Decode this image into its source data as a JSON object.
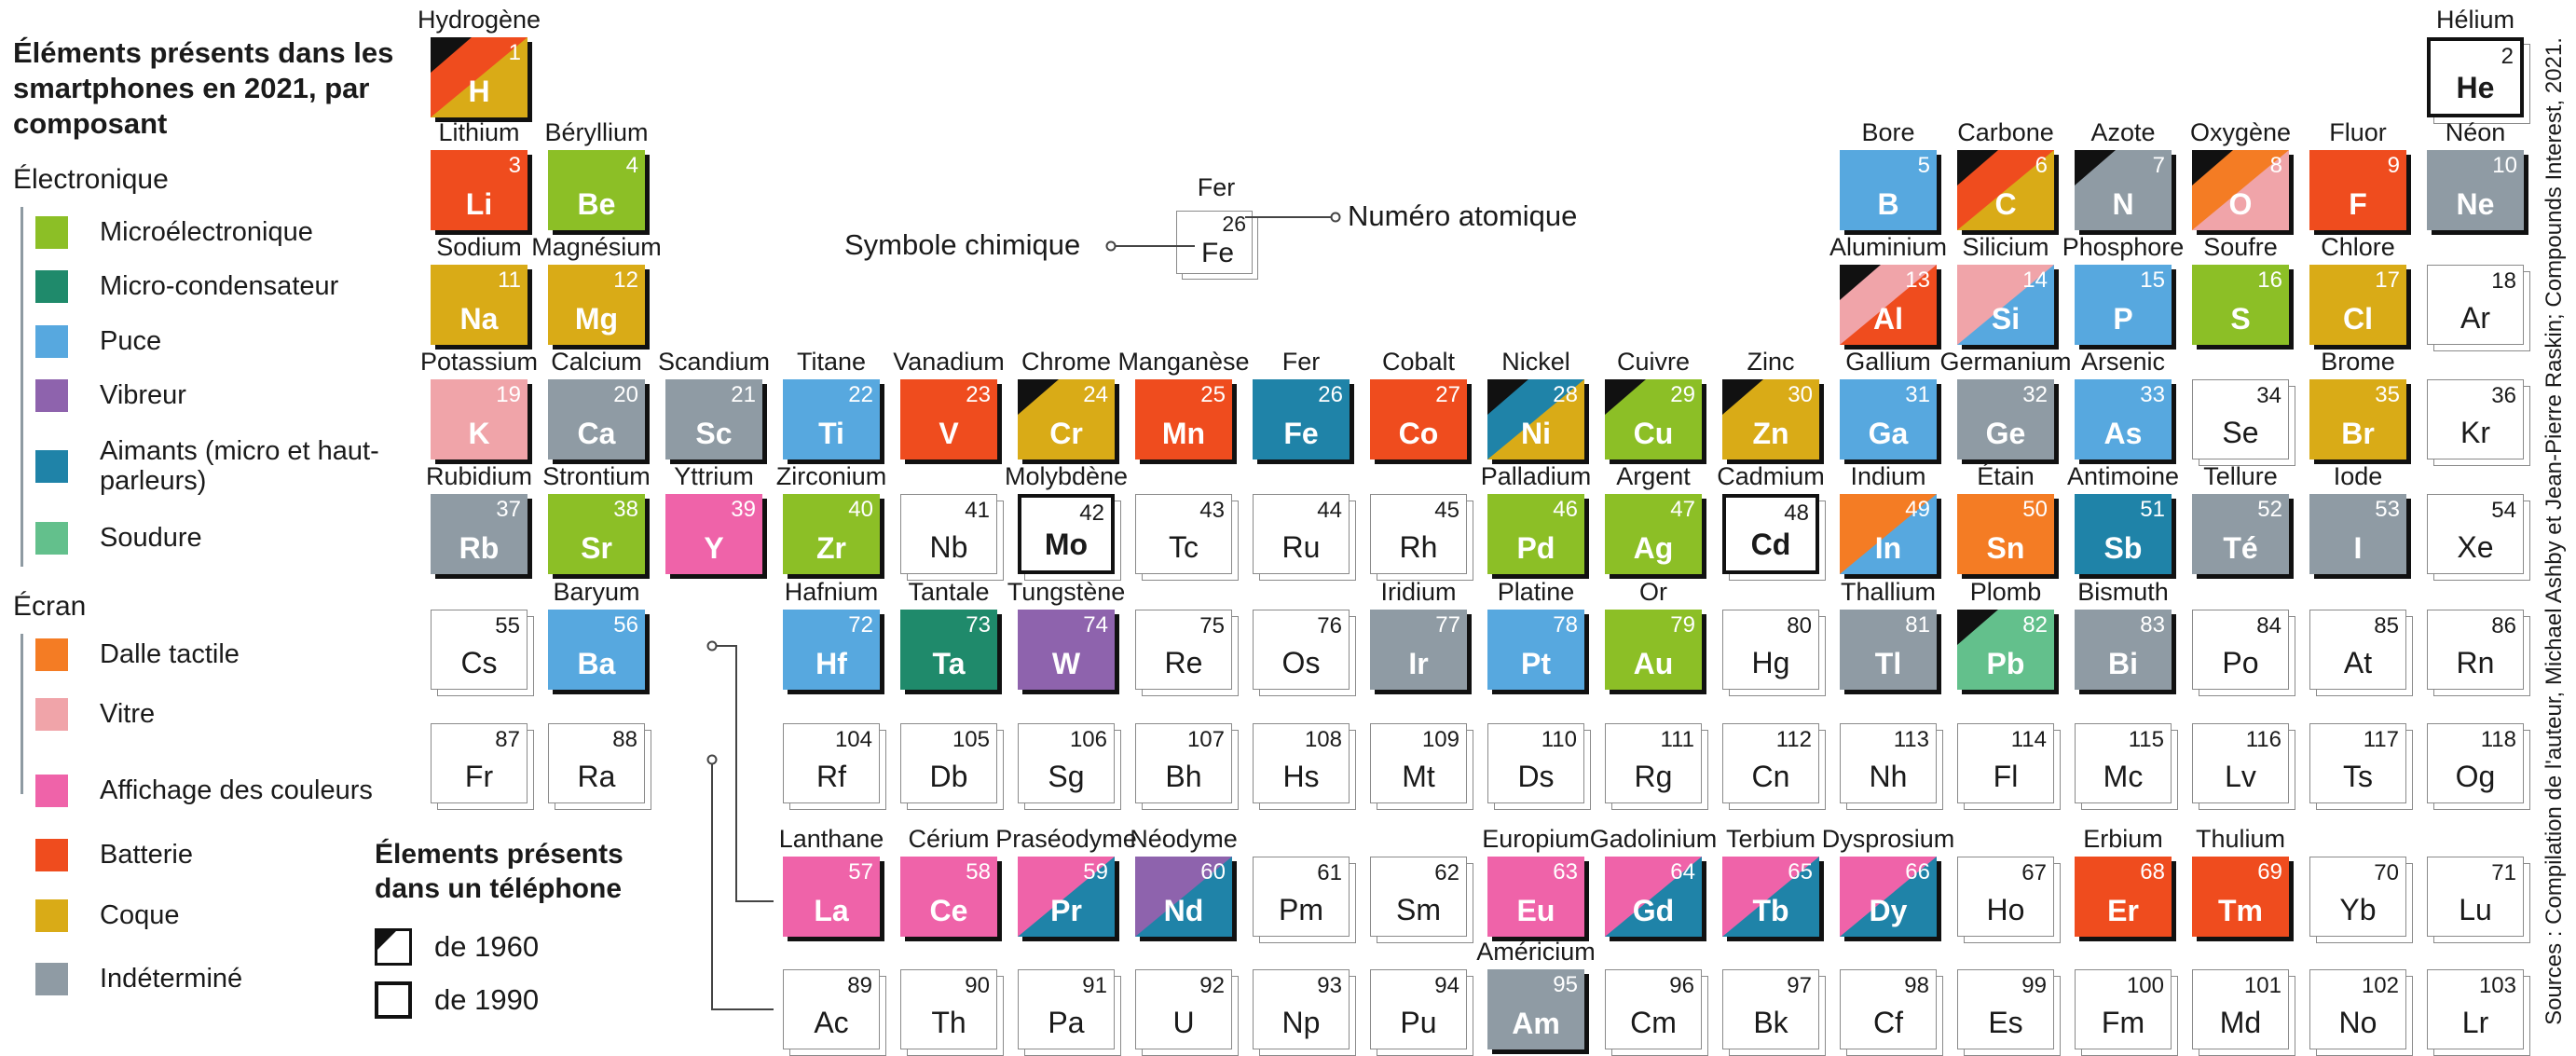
{
  "legend": {
    "title": "Éléments présents dans les smartphones en 2021, par composant",
    "section_electronics": "Électronique",
    "section_screen": "Écran",
    "electronics_items": [
      {
        "key": "micro",
        "label": "Microélectronique"
      },
      {
        "key": "cond",
        "label": "Micro-condensateur"
      },
      {
        "key": "puce",
        "label": "Puce"
      },
      {
        "key": "vibr",
        "label": "Vibreur"
      },
      {
        "key": "aim",
        "label": "Aimants (micro et haut-parleurs)"
      },
      {
        "key": "soud",
        "label": "Soudure"
      }
    ],
    "screen_items": [
      {
        "key": "dalle",
        "label": "Dalle tactile"
      },
      {
        "key": "vitre",
        "label": "Vitre"
      },
      {
        "key": "aff",
        "label": "Affichage des couleurs"
      }
    ],
    "other_items": [
      {
        "key": "batt",
        "label": "Batterie"
      },
      {
        "key": "coque",
        "label": "Coque"
      },
      {
        "key": "indet",
        "label": "Indéterminé"
      }
    ]
  },
  "colors": {
    "micro": "#8cbf26",
    "cond": "#1f8a6b",
    "puce": "#57a8df",
    "vibr": "#8e63ad",
    "aim": "#1f83a8",
    "soud": "#63c08c",
    "dalle": "#f47c24",
    "vitre": "#f0a4a9",
    "aff": "#ef63a9",
    "batt": "#ef4c1e",
    "coque": "#d9ab17",
    "indet": "#8f9ba4"
  },
  "phone_key": {
    "title": "Élements présents dans un téléphone",
    "y1960": "de 1960",
    "y1990": "de 1990"
  },
  "key_example": {
    "name": "Fer",
    "number": "26",
    "symbol": "Fe",
    "symbol_label": "Symbole chimique",
    "number_label": "Numéro atomique"
  },
  "source": "Sources : Compilation de l'auteur, Michael Ashby et Jean-Pierre Raskin; Compounds Interest, 2021.",
  "elements": [
    {
      "z": 1,
      "s": "H",
      "n": "Hydrogène",
      "r": 0,
      "c": 0,
      "cl": [
        "batt",
        "coque"
      ],
      "c60": true
    },
    {
      "z": 2,
      "s": "He",
      "n": "Hélium",
      "r": 0,
      "c": 17,
      "bold": true
    },
    {
      "z": 3,
      "s": "Li",
      "n": "Lithium",
      "r": 1,
      "c": 0,
      "cl": [
        "batt"
      ]
    },
    {
      "z": 4,
      "s": "Be",
      "n": "Béryllium",
      "r": 1,
      "c": 1,
      "cl": [
        "micro"
      ]
    },
    {
      "z": 5,
      "s": "B",
      "n": "Bore",
      "r": 1,
      "c": 12,
      "cl": [
        "puce"
      ]
    },
    {
      "z": 6,
      "s": "C",
      "n": "Carbone",
      "r": 1,
      "c": 13,
      "cl": [
        "batt",
        "coque"
      ],
      "c60": true
    },
    {
      "z": 7,
      "s": "N",
      "n": "Azote",
      "r": 1,
      "c": 14,
      "cl": [
        "indet"
      ],
      "c60": true
    },
    {
      "z": 8,
      "s": "O",
      "n": "Oxygène",
      "r": 1,
      "c": 15,
      "cl": [
        "dalle",
        "vitre"
      ],
      "c60": true
    },
    {
      "z": 9,
      "s": "F",
      "n": "Fluor",
      "r": 1,
      "c": 16,
      "cl": [
        "batt"
      ]
    },
    {
      "z": 10,
      "s": "Ne",
      "n": "Néon",
      "r": 1,
      "c": 17,
      "cl": [
        "indet"
      ]
    },
    {
      "z": 11,
      "s": "Na",
      "n": "Sodium",
      "r": 2,
      "c": 0,
      "cl": [
        "coque"
      ]
    },
    {
      "z": 12,
      "s": "Mg",
      "n": "Magnésium",
      "r": 2,
      "c": 1,
      "cl": [
        "coque"
      ]
    },
    {
      "z": 13,
      "s": "Al",
      "n": "Aluminium",
      "r": 2,
      "c": 12,
      "cl": [
        "vitre",
        "batt"
      ],
      "c60": true
    },
    {
      "z": 14,
      "s": "Si",
      "n": "Silicium",
      "r": 2,
      "c": 13,
      "cl": [
        "vitre",
        "puce"
      ]
    },
    {
      "z": 15,
      "s": "P",
      "n": "Phosphore",
      "r": 2,
      "c": 14,
      "cl": [
        "puce"
      ]
    },
    {
      "z": 16,
      "s": "S",
      "n": "Soufre",
      "r": 2,
      "c": 15,
      "cl": [
        "micro"
      ]
    },
    {
      "z": 17,
      "s": "Cl",
      "n": "Chlore",
      "r": 2,
      "c": 16,
      "cl": [
        "coque"
      ]
    },
    {
      "z": 18,
      "s": "Ar",
      "r": 2,
      "c": 17
    },
    {
      "z": 19,
      "s": "K",
      "n": "Potassium",
      "r": 3,
      "c": 0,
      "cl": [
        "vitre"
      ]
    },
    {
      "z": 20,
      "s": "Ca",
      "n": "Calcium",
      "r": 3,
      "c": 1,
      "cl": [
        "indet"
      ]
    },
    {
      "z": 21,
      "s": "Sc",
      "n": "Scandium",
      "r": 3,
      "c": 2,
      "cl": [
        "indet"
      ]
    },
    {
      "z": 22,
      "s": "Ti",
      "n": "Titane",
      "r": 3,
      "c": 3,
      "cl": [
        "puce"
      ]
    },
    {
      "z": 23,
      "s": "V",
      "n": "Vanadium",
      "r": 3,
      "c": 4,
      "cl": [
        "batt"
      ]
    },
    {
      "z": 24,
      "s": "Cr",
      "n": "Chrome",
      "r": 3,
      "c": 5,
      "cl": [
        "coque"
      ],
      "c60": true
    },
    {
      "z": 25,
      "s": "Mn",
      "n": "Manganèse",
      "r": 3,
      "c": 6,
      "cl": [
        "batt"
      ]
    },
    {
      "z": 26,
      "s": "Fe",
      "n": "Fer",
      "r": 3,
      "c": 7,
      "cl": [
        "aim"
      ]
    },
    {
      "z": 27,
      "s": "Co",
      "n": "Cobalt",
      "r": 3,
      "c": 8,
      "cl": [
        "batt"
      ]
    },
    {
      "z": 28,
      "s": "Ni",
      "n": "Nickel",
      "r": 3,
      "c": 9,
      "cl": [
        "aim",
        "coque"
      ],
      "c60": true
    },
    {
      "z": 29,
      "s": "Cu",
      "n": "Cuivre",
      "r": 3,
      "c": 10,
      "cl": [
        "micro"
      ],
      "c60": true
    },
    {
      "z": 30,
      "s": "Zn",
      "n": "Zinc",
      "r": 3,
      "c": 11,
      "cl": [
        "coque"
      ],
      "c60": true
    },
    {
      "z": 31,
      "s": "Ga",
      "n": "Gallium",
      "r": 3,
      "c": 12,
      "cl": [
        "puce"
      ]
    },
    {
      "z": 32,
      "s": "Ge",
      "n": "Germanium",
      "r": 3,
      "c": 13,
      "cl": [
        "indet"
      ]
    },
    {
      "z": 33,
      "s": "As",
      "n": "Arsenic",
      "r": 3,
      "c": 14,
      "cl": [
        "puce"
      ]
    },
    {
      "z": 34,
      "s": "Se",
      "r": 3,
      "c": 15
    },
    {
      "z": 35,
      "s": "Br",
      "n": "Brome",
      "r": 3,
      "c": 16,
      "cl": [
        "coque"
      ]
    },
    {
      "z": 36,
      "s": "Kr",
      "r": 3,
      "c": 17
    },
    {
      "z": 37,
      "s": "Rb",
      "n": "Rubidium",
      "r": 4,
      "c": 0,
      "cl": [
        "indet"
      ]
    },
    {
      "z": 38,
      "s": "Sr",
      "n": "Strontium",
      "r": 4,
      "c": 1,
      "cl": [
        "micro"
      ]
    },
    {
      "z": 39,
      "s": "Y",
      "n": "Yttrium",
      "r": 4,
      "c": 2,
      "cl": [
        "aff"
      ]
    },
    {
      "z": 40,
      "s": "Zr",
      "n": "Zirconium",
      "r": 4,
      "c": 3,
      "cl": [
        "micro"
      ]
    },
    {
      "z": 41,
      "s": "Nb",
      "r": 4,
      "c": 4
    },
    {
      "z": 42,
      "s": "Mo",
      "n": "Molybdène",
      "r": 4,
      "c": 5,
      "bold": true
    },
    {
      "z": 43,
      "s": "Tc",
      "r": 4,
      "c": 6
    },
    {
      "z": 44,
      "s": "Ru",
      "r": 4,
      "c": 7
    },
    {
      "z": 45,
      "s": "Rh",
      "r": 4,
      "c": 8
    },
    {
      "z": 46,
      "s": "Pd",
      "n": "Palladium",
      "r": 4,
      "c": 9,
      "cl": [
        "micro"
      ]
    },
    {
      "z": 47,
      "s": "Ag",
      "n": "Argent",
      "r": 4,
      "c": 10,
      "cl": [
        "micro"
      ]
    },
    {
      "z": 48,
      "s": "Cd",
      "n": "Cadmium",
      "r": 4,
      "c": 11,
      "bold": true
    },
    {
      "z": 49,
      "s": "In",
      "n": "Indium",
      "r": 4,
      "c": 12,
      "cl": [
        "dalle",
        "puce"
      ]
    },
    {
      "z": 50,
      "s": "Sn",
      "n": "Étain",
      "r": 4,
      "c": 13,
      "cl": [
        "dalle"
      ]
    },
    {
      "z": 51,
      "s": "Sb",
      "n": "Antimoine",
      "r": 4,
      "c": 14,
      "cl": [
        "aim"
      ]
    },
    {
      "z": 52,
      "s": "Té",
      "n": "Tellure",
      "r": 4,
      "c": 15,
      "cl": [
        "indet"
      ]
    },
    {
      "z": 53,
      "s": "I",
      "n": "Iode",
      "r": 4,
      "c": 16,
      "cl": [
        "indet"
      ]
    },
    {
      "z": 54,
      "s": "Xe",
      "r": 4,
      "c": 17
    },
    {
      "z": 55,
      "s": "Cs",
      "r": 5,
      "c": 0
    },
    {
      "z": 56,
      "s": "Ba",
      "n": "Baryum",
      "r": 5,
      "c": 1,
      "cl": [
        "puce"
      ]
    },
    {
      "z": 72,
      "s": "Hf",
      "n": "Hafnium",
      "r": 5,
      "c": 3,
      "cl": [
        "puce"
      ]
    },
    {
      "z": 73,
      "s": "Ta",
      "n": "Tantale",
      "r": 5,
      "c": 4,
      "cl": [
        "cond"
      ]
    },
    {
      "z": 74,
      "s": "W",
      "n": "Tungstène",
      "r": 5,
      "c": 5,
      "cl": [
        "vibr"
      ]
    },
    {
      "z": 75,
      "s": "Re",
      "r": 5,
      "c": 6
    },
    {
      "z": 76,
      "s": "Os",
      "r": 5,
      "c": 7
    },
    {
      "z": 77,
      "s": "Ir",
      "n": "Iridium",
      "r": 5,
      "c": 8,
      "cl": [
        "indet"
      ]
    },
    {
      "z": 78,
      "s": "Pt",
      "n": "Platine",
      "r": 5,
      "c": 9,
      "cl": [
        "puce"
      ]
    },
    {
      "z": 79,
      "s": "Au",
      "n": "Or",
      "r": 5,
      "c": 10,
      "cl": [
        "micro"
      ]
    },
    {
      "z": 80,
      "s": "Hg",
      "r": 5,
      "c": 11
    },
    {
      "z": 81,
      "s": "Tl",
      "n": "Thallium",
      "r": 5,
      "c": 12,
      "cl": [
        "indet"
      ]
    },
    {
      "z": 82,
      "s": "Pb",
      "n": "Plomb",
      "r": 5,
      "c": 13,
      "cl": [
        "soud"
      ],
      "c60": true
    },
    {
      "z": 83,
      "s": "Bi",
      "n": "Bismuth",
      "r": 5,
      "c": 14,
      "cl": [
        "indet"
      ]
    },
    {
      "z": 84,
      "s": "Po",
      "r": 5,
      "c": 15
    },
    {
      "z": 85,
      "s": "At",
      "r": 5,
      "c": 16
    },
    {
      "z": 86,
      "s": "Rn",
      "r": 5,
      "c": 17
    },
    {
      "z": 87,
      "s": "Fr",
      "r": 6,
      "c": 0
    },
    {
      "z": 88,
      "s": "Ra",
      "r": 6,
      "c": 1
    },
    {
      "z": 104,
      "s": "Rf",
      "r": 6,
      "c": 3
    },
    {
      "z": 105,
      "s": "Db",
      "r": 6,
      "c": 4
    },
    {
      "z": 106,
      "s": "Sg",
      "r": 6,
      "c": 5
    },
    {
      "z": 107,
      "s": "Bh",
      "r": 6,
      "c": 6
    },
    {
      "z": 108,
      "s": "Hs",
      "r": 6,
      "c": 7
    },
    {
      "z": 109,
      "s": "Mt",
      "r": 6,
      "c": 8
    },
    {
      "z": 110,
      "s": "Ds",
      "r": 6,
      "c": 9
    },
    {
      "z": 111,
      "s": "Rg",
      "r": 6,
      "c": 10
    },
    {
      "z": 112,
      "s": "Cn",
      "r": 6,
      "c": 11
    },
    {
      "z": 113,
      "s": "Nh",
      "r": 6,
      "c": 12
    },
    {
      "z": 114,
      "s": "Fl",
      "r": 6,
      "c": 13
    },
    {
      "z": 115,
      "s": "Mc",
      "r": 6,
      "c": 14
    },
    {
      "z": 116,
      "s": "Lv",
      "r": 6,
      "c": 15
    },
    {
      "z": 117,
      "s": "Ts",
      "r": 6,
      "c": 16
    },
    {
      "z": 118,
      "s": "Og",
      "r": 6,
      "c": 17
    },
    {
      "z": 57,
      "s": "La",
      "n": "Lanthane",
      "r": 7,
      "c": 3,
      "cl": [
        "aff"
      ]
    },
    {
      "z": 58,
      "s": "Ce",
      "n": "Cérium",
      "r": 7,
      "c": 4,
      "cl": [
        "aff"
      ]
    },
    {
      "z": 59,
      "s": "Pr",
      "n": "Praséodyme",
      "r": 7,
      "c": 5,
      "cl": [
        "aff",
        "aim"
      ]
    },
    {
      "z": 60,
      "s": "Nd",
      "n": "Néodyme",
      "r": 7,
      "c": 6,
      "cl": [
        "vibr",
        "aim"
      ]
    },
    {
      "z": 61,
      "s": "Pm",
      "r": 7,
      "c": 7
    },
    {
      "z": 62,
      "s": "Sm",
      "r": 7,
      "c": 8
    },
    {
      "z": 63,
      "s": "Eu",
      "n": "Europium",
      "r": 7,
      "c": 9,
      "cl": [
        "aff"
      ]
    },
    {
      "z": 64,
      "s": "Gd",
      "n": "Gadolinium",
      "r": 7,
      "c": 10,
      "cl": [
        "aff",
        "aim"
      ]
    },
    {
      "z": 65,
      "s": "Tb",
      "n": "Terbium",
      "r": 7,
      "c": 11,
      "cl": [
        "aff",
        "aim"
      ]
    },
    {
      "z": 66,
      "s": "Dy",
      "n": "Dysprosium",
      "r": 7,
      "c": 12,
      "cl": [
        "aff",
        "aim"
      ]
    },
    {
      "z": 67,
      "s": "Ho",
      "r": 7,
      "c": 13
    },
    {
      "z": 68,
      "s": "Er",
      "n": "Erbium",
      "r": 7,
      "c": 14,
      "cl": [
        "batt"
      ]
    },
    {
      "z": 69,
      "s": "Tm",
      "n": "Thulium",
      "r": 7,
      "c": 15,
      "cl": [
        "batt"
      ]
    },
    {
      "z": 70,
      "s": "Yb",
      "r": 7,
      "c": 16
    },
    {
      "z": 71,
      "s": "Lu",
      "r": 7,
      "c": 17
    },
    {
      "z": 89,
      "s": "Ac",
      "r": 8,
      "c": 3
    },
    {
      "z": 90,
      "s": "Th",
      "r": 8,
      "c": 4
    },
    {
      "z": 91,
      "s": "Pa",
      "r": 8,
      "c": 5
    },
    {
      "z": 92,
      "s": "U",
      "r": 8,
      "c": 6
    },
    {
      "z": 93,
      "s": "Np",
      "r": 8,
      "c": 7
    },
    {
      "z": 94,
      "s": "Pu",
      "r": 8,
      "c": 8
    },
    {
      "z": 95,
      "s": "Am",
      "n": "Américium",
      "r": 8,
      "c": 9,
      "cl": [
        "indet"
      ]
    },
    {
      "z": 96,
      "s": "Cm",
      "r": 8,
      "c": 10
    },
    {
      "z": 97,
      "s": "Bk",
      "r": 8,
      "c": 11
    },
    {
      "z": 98,
      "s": "Cf",
      "r": 8,
      "c": 12
    },
    {
      "z": 99,
      "s": "Es",
      "r": 8,
      "c": 13
    },
    {
      "z": 100,
      "s": "Fm",
      "r": 8,
      "c": 14
    },
    {
      "z": 101,
      "s": "Md",
      "r": 8,
      "c": 15
    },
    {
      "z": 102,
      "s": "No",
      "r": 8,
      "c": 16
    },
    {
      "z": 103,
      "s": "Lr",
      "r": 8,
      "c": 17
    }
  ]
}
